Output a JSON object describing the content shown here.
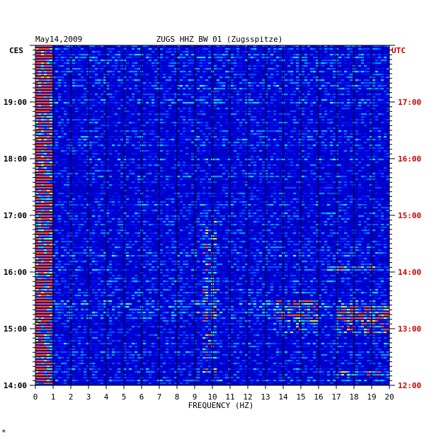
{
  "chart_data": {
    "type": "heatmap",
    "date_label": "May14,2009",
    "station_label": "ZUGS HHZ BW 01 (Zugsspitze)",
    "left_timezone": "CES",
    "right_timezone": "UTC",
    "xlabel": "FREQUENCY (HZ)",
    "x_ticks": [
      "0",
      "1",
      "2",
      "3",
      "4",
      "5",
      "6",
      "7",
      "8",
      "9",
      "10",
      "11",
      "12",
      "13",
      "14",
      "15",
      "16",
      "17",
      "18",
      "19",
      "20"
    ],
    "xlim": [
      0,
      20
    ],
    "y_ticks_left": [
      "19:00",
      "18:00",
      "17:00",
      "16:00",
      "15:00",
      "14:00"
    ],
    "y_ticks_right": [
      "17:00",
      "16:00",
      "15:00",
      "14:00",
      "13:00",
      "12:00"
    ],
    "ylim_hours_ces": [
      14.0,
      20.0
    ],
    "grid": true,
    "colors": {
      "background": "#0000c8",
      "grid": "#000000",
      "axis_text": "#000000",
      "utc_text": "#cc0000"
    },
    "features": [
      {
        "f_from": 0,
        "f_to": 1,
        "t_from": 14.0,
        "t_to": 20.0,
        "level": "high"
      },
      {
        "f_from": 9.5,
        "f_to": 10.2,
        "t_from": 14.2,
        "t_to": 16.9,
        "level": "medium"
      },
      {
        "f_from": 13.5,
        "f_to": 16.0,
        "t_from": 14.9,
        "t_to": 15.5,
        "level": "medium"
      },
      {
        "f_from": 17.0,
        "f_to": 20.0,
        "t_from": 14.9,
        "t_to": 15.4,
        "level": "high"
      },
      {
        "f_from": 16.5,
        "f_to": 19.5,
        "t_from": 16.0,
        "t_to": 16.1,
        "level": "high"
      },
      {
        "f_from": 17.0,
        "f_to": 20.0,
        "t_from": 14.15,
        "t_to": 14.25,
        "level": "high"
      }
    ]
  },
  "footer_mark": "*"
}
